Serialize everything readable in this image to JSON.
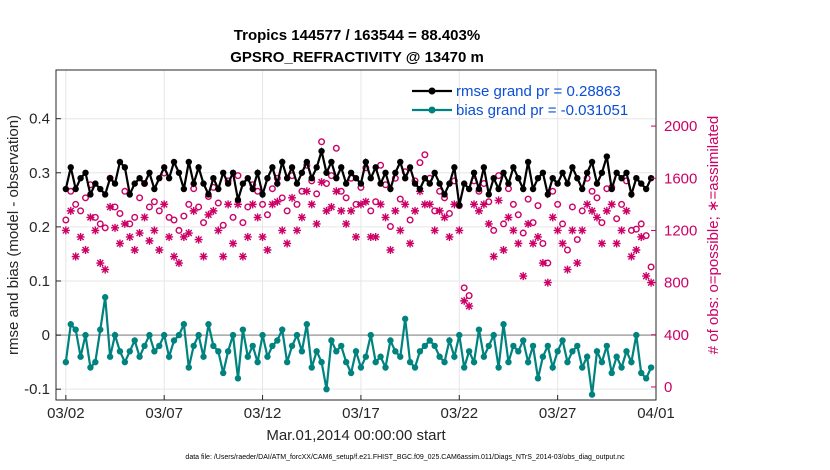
{
  "chart_data": {
    "type": "line",
    "title_line1": "Tropics 144577 / 163544 = 88.403%",
    "title_line2": "GPSRO_REFRACTIVITY @ 13470 m",
    "xlabel": "Mar.01,2014 00:00:00 start",
    "ylabel_left": "rmse and bias (model - observation)",
    "ylabel_right": "# of obs: o=possible; ∗=assimilated",
    "x_ticks": [
      "03/02",
      "03/07",
      "03/12",
      "03/17",
      "03/22",
      "03/27",
      "04/01"
    ],
    "y_ticks_left": [
      "-0.1",
      "0",
      "0.1",
      "0.2",
      "0.3",
      "0.4"
    ],
    "y_ticks_right": [
      "0",
      "400",
      "800",
      "1200",
      "1600",
      "2000"
    ],
    "xlim": [
      0.5,
      31
    ],
    "ylim_left": [
      -0.12,
      0.49
    ],
    "ylim_right": [
      -100,
      2430
    ],
    "series": [
      {
        "name": "rmse grand pr = 0.28863",
        "axis": "left",
        "color": "#000000",
        "x": [
          1.0,
          1.25,
          1.5,
          1.75,
          2.0,
          2.25,
          2.5,
          2.75,
          3.0,
          3.25,
          3.5,
          3.75,
          4.0,
          4.25,
          4.5,
          4.75,
          5.0,
          5.25,
          5.5,
          5.75,
          6.0,
          6.25,
          6.5,
          6.75,
          7.0,
          7.25,
          7.5,
          7.75,
          8.0,
          8.25,
          8.5,
          8.75,
          9.0,
          9.25,
          9.5,
          9.75,
          10.0,
          10.25,
          10.5,
          10.75,
          11.0,
          11.25,
          11.5,
          11.75,
          12.0,
          12.25,
          12.5,
          12.75,
          13.0,
          13.25,
          13.5,
          13.75,
          14.0,
          14.25,
          14.5,
          14.75,
          15.0,
          15.25,
          15.5,
          15.75,
          16.0,
          16.25,
          16.5,
          16.75,
          17.0,
          17.25,
          17.5,
          17.75,
          18.0,
          18.25,
          18.5,
          18.75,
          19.0,
          19.25,
          19.5,
          19.75,
          20.0,
          20.25,
          20.5,
          20.75,
          21.0,
          21.25,
          21.5,
          21.75,
          22.0,
          22.25,
          22.5,
          22.75,
          23.0,
          23.25,
          23.5,
          23.75,
          24.0,
          24.25,
          24.5,
          24.75,
          25.0,
          25.25,
          25.5,
          25.75,
          26.0,
          26.25,
          26.5,
          26.75,
          27.0,
          27.25,
          27.5,
          27.75,
          28.0,
          28.25,
          28.5,
          28.75,
          29.0,
          29.25,
          29.5,
          29.75,
          30.0,
          30.25,
          30.5,
          30.75
        ],
        "values": [
          0.27,
          0.31,
          0.27,
          0.29,
          0.3,
          0.26,
          0.28,
          0.27,
          0.26,
          0.29,
          0.28,
          0.32,
          0.31,
          0.26,
          0.28,
          0.29,
          0.28,
          0.3,
          0.27,
          0.29,
          0.31,
          0.29,
          0.32,
          0.3,
          0.27,
          0.32,
          0.28,
          0.31,
          0.28,
          0.26,
          0.29,
          0.27,
          0.3,
          0.28,
          0.3,
          0.25,
          0.28,
          0.29,
          0.27,
          0.3,
          0.26,
          0.29,
          0.31,
          0.28,
          0.32,
          0.29,
          0.31,
          0.28,
          0.3,
          0.32,
          0.29,
          0.31,
          0.34,
          0.3,
          0.32,
          0.29,
          0.31,
          0.28,
          0.3,
          0.29,
          0.28,
          0.32,
          0.29,
          0.31,
          0.28,
          0.3,
          0.27,
          0.3,
          0.32,
          0.29,
          0.31,
          0.28,
          0.27,
          0.29,
          0.28,
          0.3,
          0.28,
          0.26,
          0.28,
          0.31,
          0.24,
          0.28,
          0.27,
          0.3,
          0.27,
          0.31,
          0.26,
          0.29,
          0.27,
          0.3,
          0.28,
          0.31,
          0.29,
          0.27,
          0.32,
          0.27,
          0.29,
          0.3,
          0.26,
          0.29,
          0.28,
          0.3,
          0.28,
          0.31,
          0.29,
          0.27,
          0.3,
          0.32,
          0.28,
          0.3,
          0.33,
          0.27,
          0.3,
          0.29,
          0.3,
          0.26,
          0.29,
          0.28,
          0.27,
          0.29
        ]
      },
      {
        "name": "bias grand pr = -0.031051",
        "axis": "left",
        "color": "#00827f",
        "x": [
          1.0,
          1.25,
          1.5,
          1.75,
          2.0,
          2.25,
          2.5,
          2.75,
          3.0,
          3.25,
          3.5,
          3.75,
          4.0,
          4.25,
          4.5,
          4.75,
          5.0,
          5.25,
          5.5,
          5.75,
          6.0,
          6.25,
          6.5,
          6.75,
          7.0,
          7.25,
          7.5,
          7.75,
          8.0,
          8.25,
          8.5,
          8.75,
          9.0,
          9.25,
          9.5,
          9.75,
          10.0,
          10.25,
          10.5,
          10.75,
          11.0,
          11.25,
          11.5,
          11.75,
          12.0,
          12.25,
          12.5,
          12.75,
          13.0,
          13.25,
          13.5,
          13.75,
          14.0,
          14.25,
          14.5,
          14.75,
          15.0,
          15.25,
          15.5,
          15.75,
          16.0,
          16.25,
          16.5,
          16.75,
          17.0,
          17.25,
          17.5,
          17.75,
          18.0,
          18.25,
          18.5,
          18.75,
          19.0,
          19.25,
          19.5,
          19.75,
          20.0,
          20.25,
          20.5,
          20.75,
          21.0,
          21.25,
          21.5,
          21.75,
          22.0,
          22.25,
          22.5,
          22.75,
          23.0,
          23.25,
          23.5,
          23.75,
          24.0,
          24.25,
          24.5,
          24.75,
          25.0,
          25.25,
          25.5,
          25.75,
          26.0,
          26.25,
          26.5,
          26.75,
          27.0,
          27.25,
          27.5,
          27.75,
          28.0,
          28.25,
          28.5,
          28.75,
          29.0,
          29.25,
          29.5,
          29.75,
          30.0,
          30.25,
          30.5,
          30.75
        ],
        "values": [
          -0.05,
          0.02,
          0.01,
          -0.04,
          0.0,
          -0.06,
          -0.05,
          0.01,
          0.07,
          -0.04,
          0.0,
          -0.03,
          -0.05,
          -0.03,
          -0.01,
          -0.04,
          -0.02,
          0.0,
          -0.03,
          -0.02,
          0.0,
          -0.04,
          -0.01,
          0.0,
          0.02,
          -0.06,
          -0.02,
          0.0,
          -0.04,
          0.02,
          -0.02,
          -0.03,
          -0.07,
          -0.03,
          0.0,
          -0.08,
          0.01,
          -0.04,
          -0.02,
          -0.05,
          0.0,
          -0.04,
          -0.02,
          -0.01,
          0.01,
          -0.05,
          -0.02,
          0.0,
          -0.03,
          0.02,
          -0.06,
          -0.03,
          -0.05,
          -0.1,
          -0.01,
          -0.03,
          -0.02,
          -0.05,
          -0.07,
          -0.03,
          -0.06,
          -0.04,
          0.0,
          -0.05,
          -0.04,
          -0.06,
          -0.01,
          -0.03,
          -0.04,
          0.03,
          -0.05,
          -0.06,
          -0.03,
          -0.02,
          -0.01,
          -0.02,
          -0.04,
          -0.05,
          -0.01,
          -0.04,
          0.0,
          -0.06,
          -0.03,
          -0.05,
          0.01,
          -0.04,
          -0.02,
          0.0,
          -0.06,
          0.02,
          -0.05,
          -0.02,
          -0.03,
          -0.01,
          -0.05,
          -0.02,
          -0.08,
          -0.04,
          -0.02,
          -0.06,
          -0.03,
          -0.01,
          -0.05,
          -0.03,
          -0.02,
          -0.06,
          -0.04,
          -0.11,
          -0.03,
          -0.05,
          -0.02,
          -0.07,
          -0.04,
          -0.06,
          -0.03,
          -0.05,
          0.0,
          -0.07,
          -0.08,
          -0.06
        ]
      },
      {
        "name": "possible obs",
        "axis": "right",
        "color": "#cc0066",
        "marker": "circle",
        "x": [
          1.0,
          1.25,
          1.5,
          1.75,
          2.0,
          2.25,
          2.5,
          2.75,
          3.0,
          3.25,
          3.5,
          3.75,
          4.0,
          4.25,
          4.5,
          4.75,
          5.0,
          5.25,
          5.5,
          5.75,
          6.0,
          6.25,
          6.5,
          6.75,
          7.0,
          7.25,
          7.5,
          7.75,
          8.0,
          8.25,
          8.5,
          8.75,
          9.0,
          9.25,
          9.5,
          9.75,
          10.0,
          10.25,
          10.5,
          10.75,
          11.0,
          11.25,
          11.5,
          11.75,
          12.0,
          12.25,
          12.5,
          12.75,
          13.0,
          13.25,
          13.5,
          13.75,
          14.0,
          14.25,
          14.5,
          14.75,
          15.0,
          15.25,
          15.5,
          15.75,
          16.0,
          16.25,
          16.5,
          16.75,
          17.0,
          17.25,
          17.5,
          17.75,
          18.0,
          18.25,
          18.5,
          18.75,
          19.0,
          19.25,
          19.5,
          19.75,
          20.0,
          20.25,
          20.5,
          20.75,
          21.0,
          21.25,
          21.5,
          21.75,
          22.0,
          22.25,
          22.5,
          22.75,
          23.0,
          23.25,
          23.5,
          23.75,
          24.0,
          24.25,
          24.5,
          24.75,
          25.0,
          25.25,
          25.5,
          25.75,
          26.0,
          26.25,
          26.5,
          26.75,
          27.0,
          27.25,
          27.5,
          27.75,
          28.0,
          28.25,
          28.5,
          28.75,
          29.0,
          29.25,
          29.5,
          29.75,
          30.0,
          30.25,
          30.5,
          30.75
        ],
        "values": [
          1280,
          1500,
          1400,
          1350,
          1450,
          1550,
          1300,
          1250,
          1220,
          1600,
          1380,
          1330,
          1500,
          1250,
          1300,
          1450,
          1560,
          1380,
          1420,
          1350,
          1640,
          1300,
          1280,
          1200,
          1310,
          1400,
          1520,
          1380,
          1260,
          1460,
          1530,
          1410,
          1240,
          1580,
          1300,
          1620,
          1260,
          1380,
          1550,
          1500,
          1400,
          1320,
          1520,
          1600,
          1450,
          1350,
          1620,
          1400,
          1500,
          1700,
          1580,
          1480,
          1880,
          1560,
          1620,
          1830,
          1500,
          1450,
          1600,
          1400,
          1530,
          1680,
          1350,
          1420,
          1700,
          1550,
          1230,
          1600,
          1440,
          1650,
          1280,
          1580,
          1720,
          1780,
          1600,
          1350,
          1500,
          1450,
          1330,
          1580,
          1390,
          760,
          700,
          1580,
          1500,
          1560,
          1420,
          1200,
          1620,
          1250,
          1520,
          1400,
          1320,
          1180,
          1440,
          1260,
          1390,
          1100,
          950,
          1500,
          1400,
          1250,
          1050,
          1380,
          1130,
          1350,
          1600,
          1500,
          1450,
          1260,
          1520,
          1530,
          1290,
          1400,
          1580,
          1200,
          1210,
          1250,
          1160,
          920
        ]
      },
      {
        "name": "assimilated obs",
        "axis": "right",
        "color": "#cc0066",
        "marker": "asterisk",
        "x": [
          1.0,
          1.25,
          1.5,
          1.75,
          2.0,
          2.25,
          2.5,
          2.75,
          3.0,
          3.25,
          3.5,
          3.75,
          4.0,
          4.25,
          4.5,
          4.75,
          5.0,
          5.25,
          5.5,
          5.75,
          6.0,
          6.25,
          6.5,
          6.75,
          7.0,
          7.25,
          7.5,
          7.75,
          8.0,
          8.25,
          8.5,
          8.75,
          9.0,
          9.25,
          9.5,
          9.75,
          10.0,
          10.25,
          10.5,
          10.75,
          11.0,
          11.25,
          11.5,
          11.75,
          12.0,
          12.25,
          12.5,
          12.75,
          13.0,
          13.25,
          13.5,
          13.75,
          14.0,
          14.25,
          14.5,
          14.75,
          15.0,
          15.25,
          15.5,
          15.75,
          16.0,
          16.25,
          16.5,
          16.75,
          17.0,
          17.25,
          17.5,
          17.75,
          18.0,
          18.25,
          18.5,
          18.75,
          19.0,
          19.25,
          19.5,
          19.75,
          20.0,
          20.25,
          20.5,
          20.75,
          21.0,
          21.25,
          21.5,
          21.75,
          22.0,
          22.25,
          22.5,
          22.75,
          23.0,
          23.25,
          23.5,
          23.75,
          24.0,
          24.25,
          24.5,
          24.75,
          25.0,
          25.25,
          25.5,
          25.75,
          26.0,
          26.25,
          26.5,
          26.75,
          27.0,
          27.25,
          27.5,
          27.75,
          28.0,
          28.25,
          28.5,
          28.75,
          29.0,
          29.25,
          29.5,
          29.75,
          30.0,
          30.25,
          30.5,
          30.75
        ],
        "values": [
          1200,
          1350,
          1000,
          1150,
          1050,
          1300,
          1200,
          950,
          900,
          1380,
          1220,
          1100,
          1250,
          1150,
          1050,
          1180,
          1300,
          1120,
          1200,
          1050,
          1400,
          1150,
          1000,
          950,
          1150,
          1180,
          1350,
          1130,
          1000,
          1320,
          1350,
          1200,
          1000,
          1400,
          1100,
          1400,
          1000,
          1150,
          1400,
          1300,
          1150,
          1050,
          1400,
          1420,
          1200,
          1100,
          1450,
          1200,
          1300,
          1500,
          1400,
          1250,
          1570,
          1350,
          1380,
          1500,
          1350,
          1250,
          1350,
          1150,
          1400,
          1420,
          1150,
          1150,
          1400,
          1300,
          1050,
          1350,
          1200,
          1400,
          1100,
          1350,
          1500,
          1400,
          1400,
          1200,
          1350,
          1300,
          1150,
          1400,
          1200,
          660,
          620,
          1400,
          1350,
          1400,
          1250,
          1000,
          1430,
          1050,
          1300,
          1200,
          1100,
          850,
          1250,
          1100,
          1150,
          950,
          800,
          1300,
          1200,
          1100,
          900,
          1200,
          950,
          1200,
          1400,
          1350,
          1300,
          1100,
          1350,
          1400,
          1100,
          1200,
          1350,
          1000,
          1050,
          1150,
          850,
          800
        ]
      }
    ],
    "legend_position": "top-right",
    "zero_line": true,
    "footer": "data file: /Users/raeder/DAI/ATM_forcXX/CAM6_setup/f.e21.FHIST_BGC.f09_025.CAM6assim.011/Diags_NTrS_2014-03/obs_diag_output.nc"
  }
}
